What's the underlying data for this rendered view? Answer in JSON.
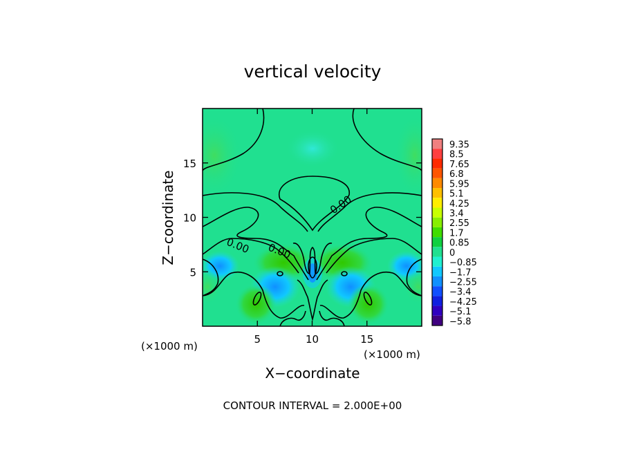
{
  "chart_data": {
    "type": "heatmap",
    "title": "vertical velocity",
    "xlabel": "X−coordinate",
    "ylabel": "Z−coordinate",
    "x_unit": "(×1000 m)",
    "y_unit": "(×1000 m)",
    "xlim": [
      0,
      20
    ],
    "ylim": [
      0,
      20
    ],
    "xticks": [
      5,
      10,
      15
    ],
    "yticks": [
      5,
      10,
      15
    ],
    "colorbar": {
      "labels": [
        "9.35",
        "8.5",
        "7.65",
        "6.8",
        "5.95",
        "5.1",
        "4.25",
        "3.4",
        "2.55",
        "1.7",
        "0.85",
        "0",
        "−0.85",
        "−1.7",
        "−2.55",
        "−3.4",
        "−4.25",
        "−5.1",
        "−5.8"
      ],
      "colors": [
        "#f08080",
        "#ff4040",
        "#ff2a00",
        "#ff5500",
        "#ff8a00",
        "#ffc000",
        "#ffee00",
        "#c8ff00",
        "#88ee00",
        "#40dd00",
        "#10d040",
        "#20e090",
        "#20f0d0",
        "#10c8ff",
        "#1090ff",
        "#1050ff",
        "#1020e0",
        "#3000c0",
        "#400080"
      ]
    },
    "background_value": 0,
    "contour_label": "0.00",
    "contour_labels": [
      {
        "text": "0.00",
        "x": 12.8,
        "z": 10.9
      },
      {
        "text": "0.00",
        "x": 3.1,
        "z": 7.1
      },
      {
        "text": "0.00",
        "x": 6.9,
        "z": 6.6
      }
    ],
    "features": [
      {
        "name": "central downdraft",
        "x": 10,
        "z": 4.9,
        "value": -4.0
      },
      {
        "name": "left-flank downdraft",
        "x": 6.6,
        "z": 3.3,
        "value": -2.0
      },
      {
        "name": "right-flank downdraft",
        "x": 13.4,
        "z": 3.3,
        "value": -2.0
      },
      {
        "name": "left updraft",
        "x": 5.0,
        "z": 2.6,
        "value": 2.0
      },
      {
        "name": "right updraft",
        "x": 15.0,
        "z": 2.6,
        "value": 2.0
      }
    ],
    "note": "CONTOUR INTERVAL = 2.000E+00"
  }
}
